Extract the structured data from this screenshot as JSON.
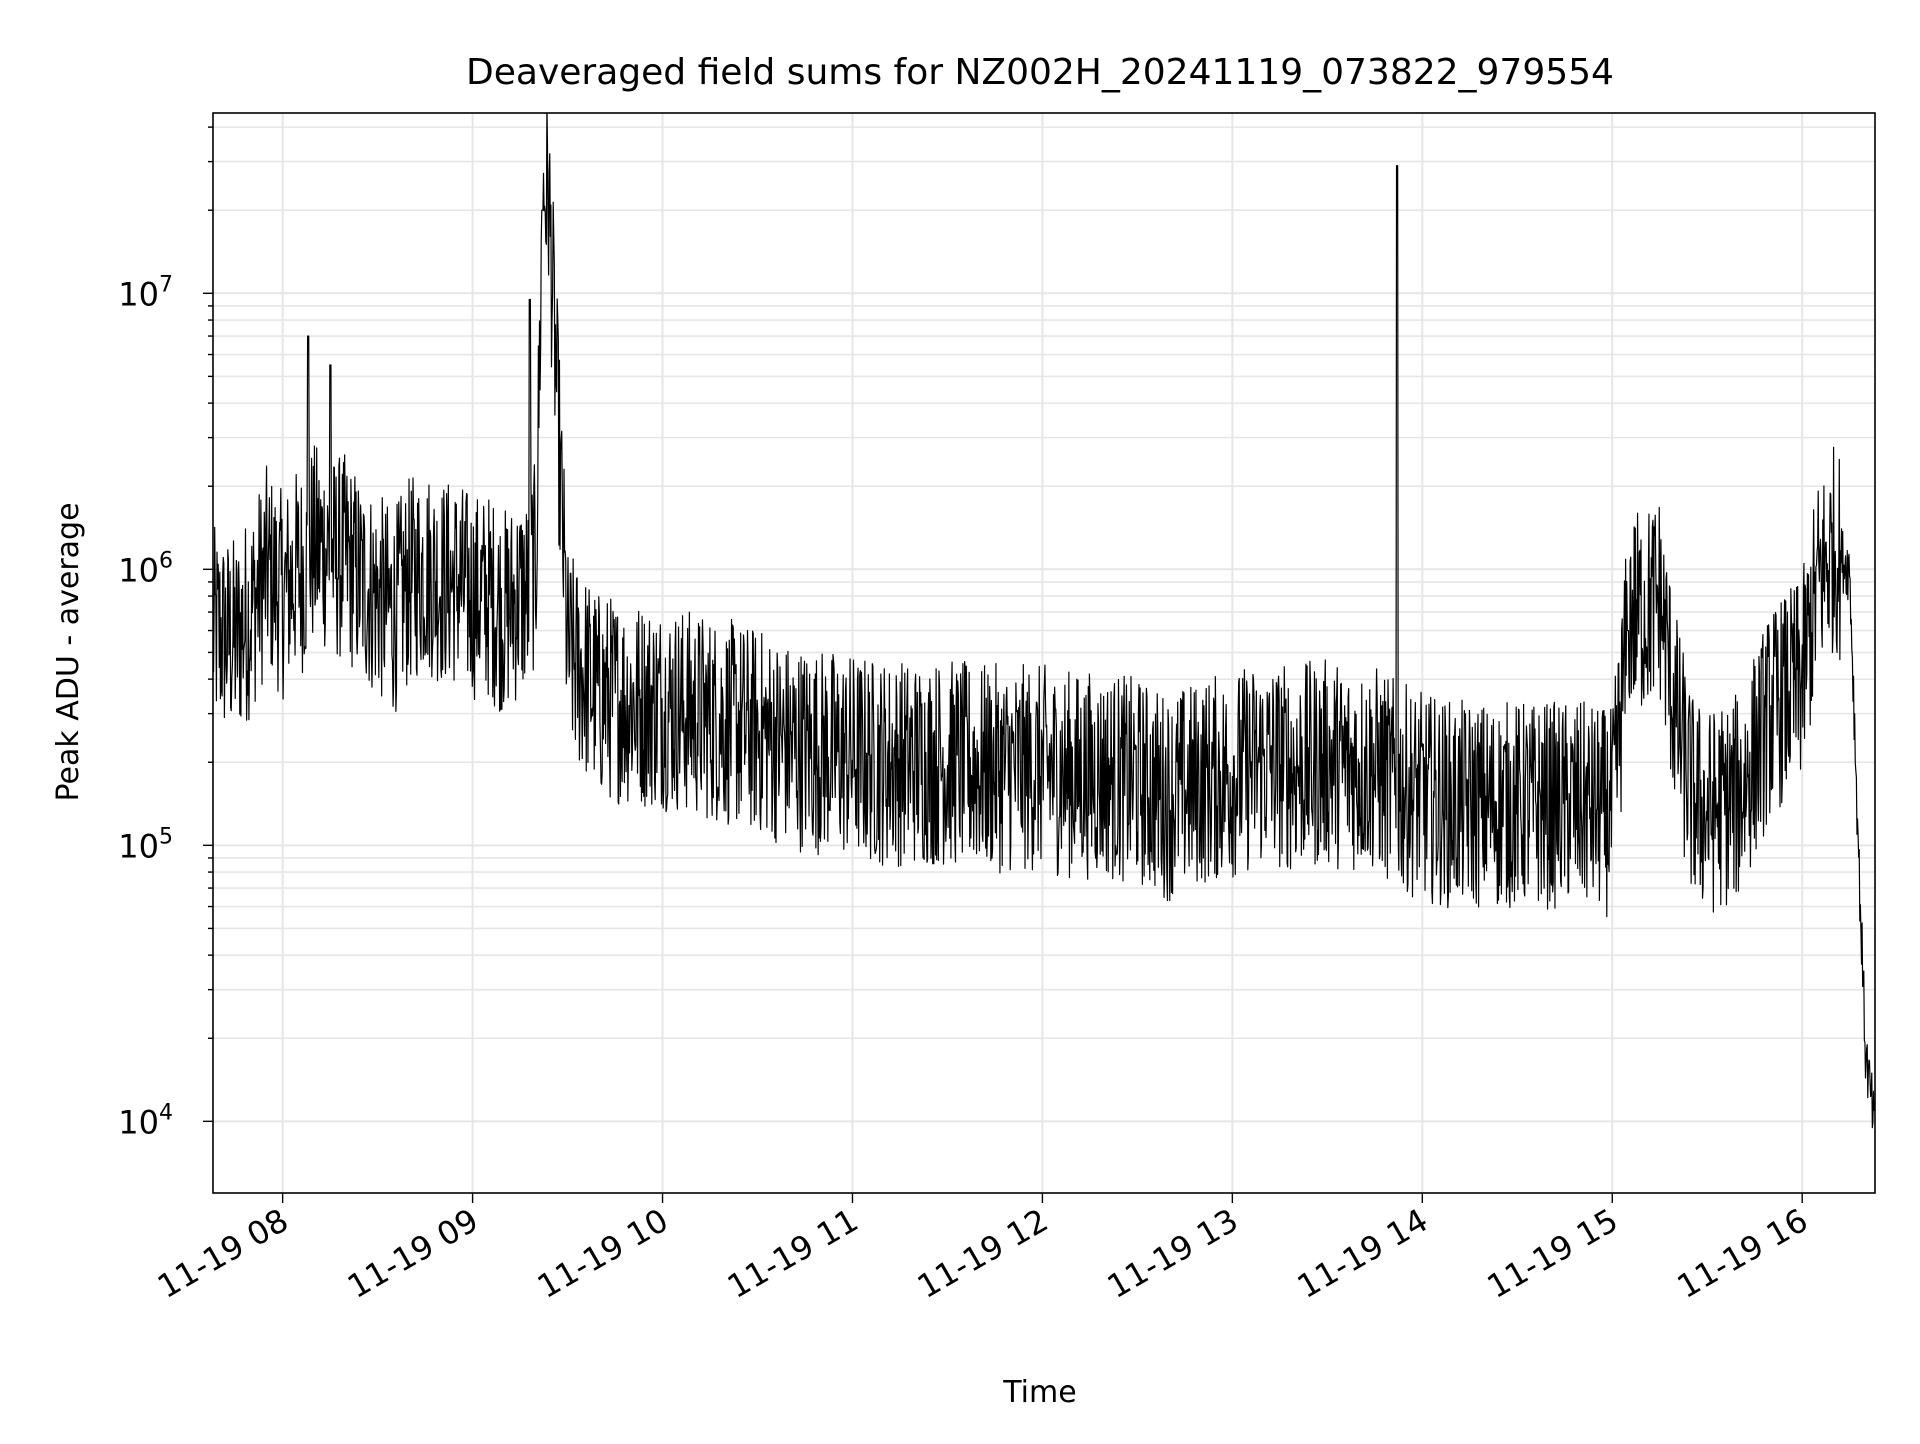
{
  "chart_data": {
    "type": "line",
    "title": "Deaveraged field sums for NZ002H_20241119_073822_979554",
    "xlabel": "Time",
    "ylabel": "Peak ADU - average",
    "xscale": "time",
    "yscale": "log",
    "xlim": [
      "2024-11-19 07:38",
      "2024-11-19 16:23"
    ],
    "ylim": [
      5500,
      45000000
    ],
    "x_ticks": [
      "11-19 08",
      "11-19 09",
      "11-19 10",
      "11-19 11",
      "11-19 12",
      "11-19 13",
      "11-19 14",
      "11-19 15",
      "11-19 16"
    ],
    "y_ticks": [
      {
        "base": "10",
        "exp": "4",
        "value": 10000
      },
      {
        "base": "10",
        "exp": "5",
        "value": 100000
      },
      {
        "base": "10",
        "exp": "6",
        "value": 1000000
      },
      {
        "base": "10",
        "exp": "7",
        "value": 10000000
      }
    ],
    "grid": true,
    "legend": "none",
    "line_color": "#000000",
    "grid_color": "#e6e6e6",
    "series": [
      {
        "x": [
          "07:38",
          "07:45",
          "07:50",
          "07:55",
          "08:00",
          "08:05",
          "08:08",
          "08:10",
          "08:15",
          "08:20",
          "08:25",
          "08:30",
          "08:35",
          "08:40",
          "08:45",
          "08:50",
          "08:55",
          "09:00",
          "09:05",
          "09:10",
          "09:15",
          "09:18",
          "09:20",
          "09:22",
          "09:24",
          "09:30",
          "09:40",
          "09:50",
          "10:00",
          "10:10",
          "10:20",
          "10:30",
          "10:40",
          "10:50",
          "11:00",
          "11:10",
          "11:20",
          "11:30",
          "11:40",
          "11:50",
          "12:00",
          "12:10",
          "12:20",
          "12:30",
          "12:40",
          "12:50",
          "13:00",
          "13:10",
          "13:20",
          "13:30",
          "13:40",
          "13:45",
          "13:50",
          "13:52",
          "13:55",
          "14:00",
          "14:10",
          "14:20",
          "14:30",
          "14:40",
          "14:50",
          "15:00",
          "15:05",
          "15:10",
          "15:15",
          "15:20",
          "15:25",
          "15:30",
          "15:40",
          "15:50",
          "16:00",
          "16:05",
          "16:10",
          "16:15",
          "16:18",
          "16:20",
          "16:23"
        ],
        "y": [
          600000,
          550000,
          700000,
          1000000,
          800000,
          1000000,
          7000000,
          1200000,
          5500000,
          1100000,
          900000,
          800000,
          700000,
          900000,
          1000000,
          900000,
          900000,
          800000,
          800000,
          700000,
          800000,
          9500000,
          1000000,
          20000000,
          23000000,
          500000,
          350000,
          330000,
          320000,
          300000,
          280000,
          260000,
          230000,
          220000,
          210000,
          200000,
          200000,
          200000,
          190000,
          190000,
          190000,
          180000,
          180000,
          170000,
          150000,
          170000,
          180000,
          200000,
          190000,
          200000,
          190000,
          190000,
          170000,
          29000000,
          160000,
          150000,
          140000,
          140000,
          140000,
          140000,
          140000,
          130000,
          600000,
          700000,
          800000,
          300000,
          150000,
          130000,
          150000,
          300000,
          400000,
          900000,
          1200000,
          1000000,
          80000,
          18000,
          9000
        ]
      }
    ]
  }
}
